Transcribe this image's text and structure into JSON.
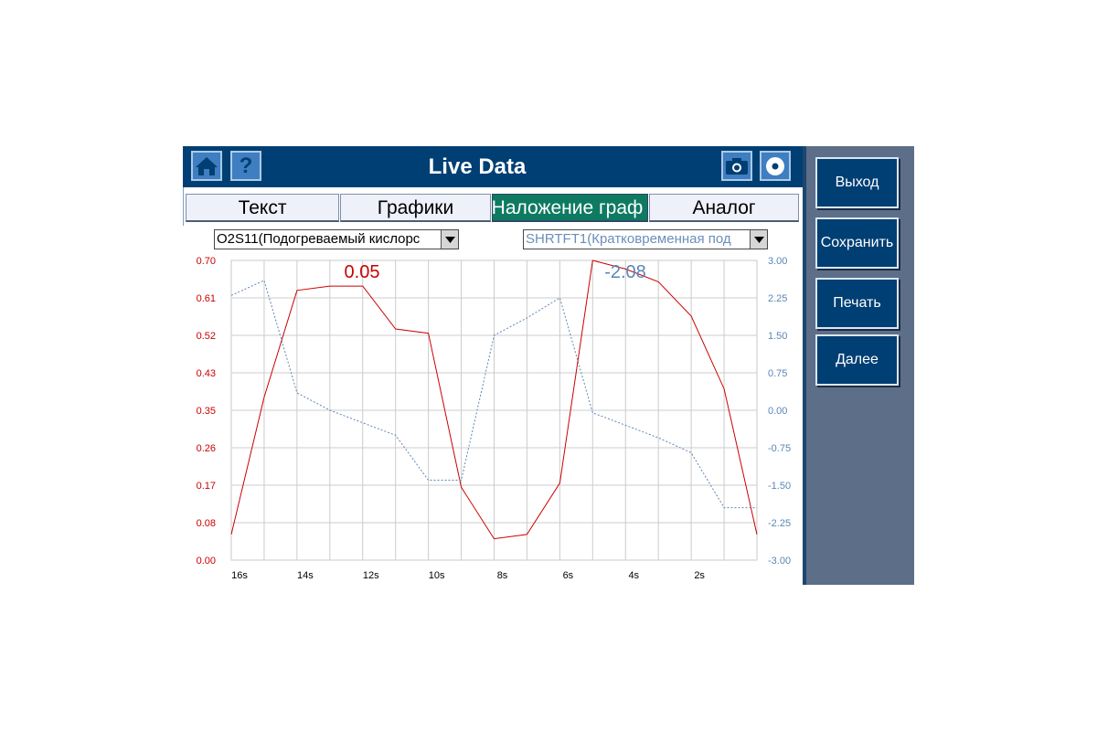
{
  "header": {
    "title": "Live Data",
    "help_label": "?",
    "icons": [
      "home-icon",
      "help-icon",
      "camera-icon",
      "disc-icon"
    ]
  },
  "tabs": [
    {
      "label": "Текст",
      "active": false
    },
    {
      "label": "Графики",
      "active": false
    },
    {
      "label": "Наложение граф",
      "active": true
    },
    {
      "label": "Аналог",
      "active": false
    }
  ],
  "selects": {
    "left": {
      "value": "O2S11(Подогреваемый кислорс"
    },
    "right": {
      "value": "SHRTFT1(Кратковременная под"
    }
  },
  "right_panel": {
    "buttons": [
      "Выход",
      "Сохранить",
      "Печать",
      "Далее"
    ]
  },
  "colors": {
    "header_bg": "#003f74",
    "active_tab": "#0e7a62",
    "left_series": "#cc0000",
    "right_series": "#5b86b5",
    "panel_bg": "#5d6e88"
  },
  "chart_data": {
    "type": "line",
    "x_ticks": [
      "16s",
      "14s",
      "12s",
      "10s",
      "8s",
      "6s",
      "4s",
      "2s"
    ],
    "left_axis": {
      "ticks": [
        "0.70",
        "0.61",
        "0.52",
        "0.43",
        "0.35",
        "0.26",
        "0.17",
        "0.08",
        "0.00"
      ],
      "ylim": [
        0,
        0.7
      ]
    },
    "right_axis": {
      "ticks": [
        "3.00",
        "2.25",
        "1.50",
        "0.75",
        "0.00",
        "-0.75",
        "-1.50",
        "-2.25",
        "-3.00"
      ],
      "ylim": [
        -3,
        3
      ]
    },
    "grid": true,
    "series": [
      {
        "axis": "left",
        "style": "solid",
        "current_value": "0.05",
        "values": [
          0.06,
          0.38,
          0.63,
          0.64,
          0.64,
          0.54,
          0.53,
          0.17,
          0.05,
          0.06,
          0.18,
          0.7,
          0.68,
          0.65,
          0.57,
          0.4,
          0.06
        ]
      },
      {
        "axis": "right",
        "style": "dotted",
        "current_value": "-2.08",
        "values": [
          2.3,
          2.6,
          0.35,
          0.0,
          -0.25,
          -0.5,
          -1.4,
          -1.4,
          1.5,
          1.85,
          2.25,
          -0.05,
          -0.3,
          -0.55,
          -0.85,
          -1.95,
          -1.95
        ]
      }
    ]
  }
}
